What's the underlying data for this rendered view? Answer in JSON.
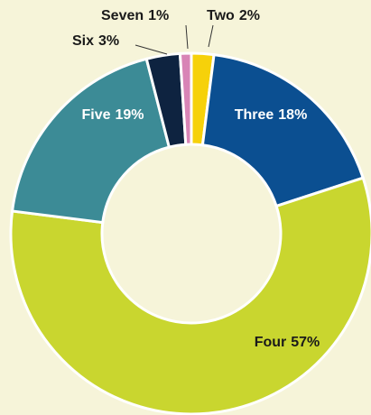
{
  "chart_data": {
    "type": "donut",
    "categories": [
      "Two",
      "Three",
      "Four",
      "Five",
      "Six",
      "Seven"
    ],
    "values": [
      2,
      18,
      57,
      19,
      3,
      1
    ],
    "value_labels": [
      "2%",
      "18%",
      "57%",
      "19%",
      "3%",
      "1%"
    ],
    "colors": [
      "#f6d10a",
      "#0b4f91",
      "#c9d62f",
      "#3c8b96",
      "#0e2340",
      "#d884b6"
    ]
  }
}
